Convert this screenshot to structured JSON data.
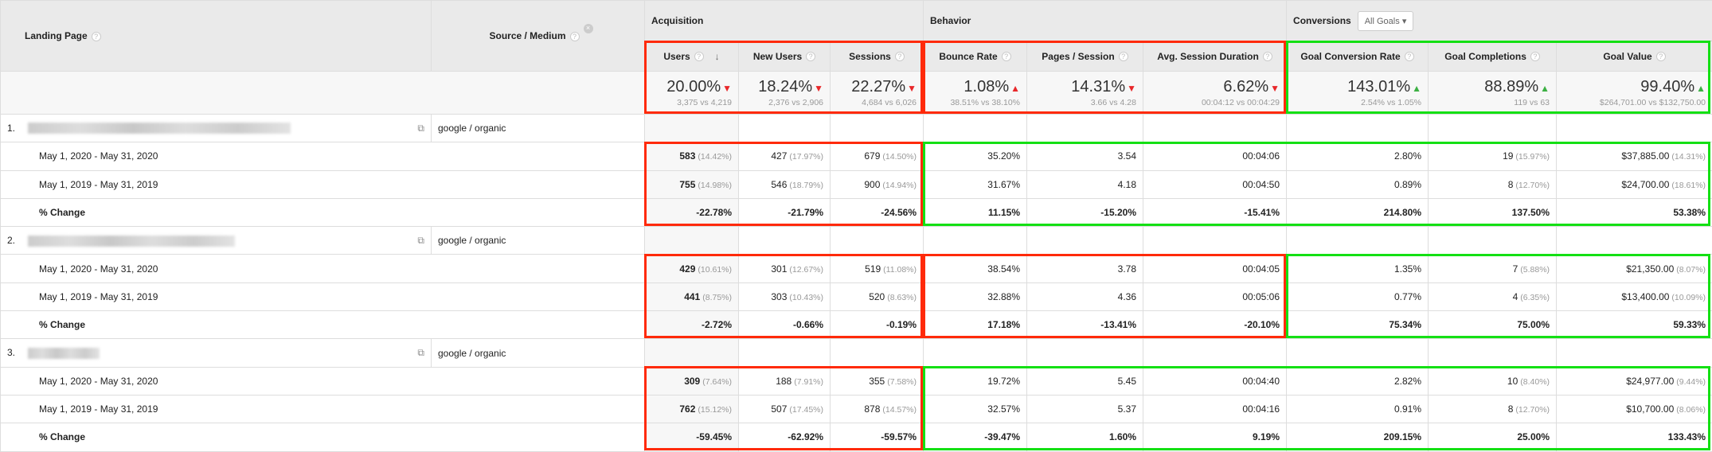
{
  "header": {
    "landing_page": "Landing Page",
    "source_medium": "Source / Medium",
    "groups": {
      "acquisition": "Acquisition",
      "behavior": "Behavior",
      "conversions": "Conversions",
      "goal_select": "All Goals"
    },
    "columns": [
      "Users",
      "New Users",
      "Sessions",
      "Bounce Rate",
      "Pages / Session",
      "Avg. Session Duration",
      "Goal Conversion Rate",
      "Goal Completions",
      "Goal Value"
    ]
  },
  "summary": [
    {
      "value": "20.00%",
      "sub": "3,375 vs 4,219",
      "dir": "down"
    },
    {
      "value": "18.24%",
      "sub": "2,376 vs 2,906",
      "dir": "down"
    },
    {
      "value": "22.27%",
      "sub": "4,684 vs 6,026",
      "dir": "down"
    },
    {
      "value": "1.08%",
      "sub": "38.51% vs 38.10%",
      "dir": "up-bad"
    },
    {
      "value": "14.31%",
      "sub": "3.66 vs 4.28",
      "dir": "down"
    },
    {
      "value": "6.62%",
      "sub": "00:04:12 vs 00:04:29",
      "dir": "down"
    },
    {
      "value": "143.01%",
      "sub": "2.54% vs 1.05%",
      "dir": "up"
    },
    {
      "value": "88.89%",
      "sub": "119 vs 63",
      "dir": "up"
    },
    {
      "value": "99.40%",
      "sub": "$264,701.00 vs $132,750.00",
      "dir": "up"
    }
  ],
  "rows": [
    {
      "index": "1.",
      "source": "google / organic",
      "periods": [
        {
          "label": "May 1, 2020 - May 31, 2020",
          "cells": [
            [
              "583",
              "(14.42%)"
            ],
            [
              "427",
              "(17.97%)"
            ],
            [
              "679",
              "(14.50%)"
            ],
            [
              "35.20%",
              ""
            ],
            [
              "3.54",
              ""
            ],
            [
              "00:04:06",
              ""
            ],
            [
              "2.80%",
              ""
            ],
            [
              "19",
              "(15.97%)"
            ],
            [
              "$37,885.00",
              "(14.31%)"
            ]
          ]
        },
        {
          "label": "May 1, 2019 - May 31, 2019",
          "cells": [
            [
              "755",
              "(14.98%)"
            ],
            [
              "546",
              "(18.79%)"
            ],
            [
              "900",
              "(14.94%)"
            ],
            [
              "31.67%",
              ""
            ],
            [
              "4.18",
              ""
            ],
            [
              "00:04:50",
              ""
            ],
            [
              "0.89%",
              ""
            ],
            [
              "8",
              "(12.70%)"
            ],
            [
              "$24,700.00",
              "(18.61%)"
            ]
          ]
        },
        {
          "label": "% Change",
          "cells": [
            [
              "-22.78%",
              ""
            ],
            [
              "-21.79%",
              ""
            ],
            [
              "-24.56%",
              ""
            ],
            [
              "11.15%",
              ""
            ],
            [
              "-15.20%",
              ""
            ],
            [
              "-15.41%",
              ""
            ],
            [
              "214.80%",
              ""
            ],
            [
              "137.50%",
              ""
            ],
            [
              "53.38%",
              ""
            ]
          ]
        }
      ]
    },
    {
      "index": "2.",
      "source": "google / organic",
      "periods": [
        {
          "label": "May 1, 2020 - May 31, 2020",
          "cells": [
            [
              "429",
              "(10.61%)"
            ],
            [
              "301",
              "(12.67%)"
            ],
            [
              "519",
              "(11.08%)"
            ],
            [
              "38.54%",
              ""
            ],
            [
              "3.78",
              ""
            ],
            [
              "00:04:05",
              ""
            ],
            [
              "1.35%",
              ""
            ],
            [
              "7",
              "(5.88%)"
            ],
            [
              "$21,350.00",
              "(8.07%)"
            ]
          ]
        },
        {
          "label": "May 1, 2019 - May 31, 2019",
          "cells": [
            [
              "441",
              "(8.75%)"
            ],
            [
              "303",
              "(10.43%)"
            ],
            [
              "520",
              "(8.63%)"
            ],
            [
              "32.88%",
              ""
            ],
            [
              "4.36",
              ""
            ],
            [
              "00:05:06",
              ""
            ],
            [
              "0.77%",
              ""
            ],
            [
              "4",
              "(6.35%)"
            ],
            [
              "$13,400.00",
              "(10.09%)"
            ]
          ]
        },
        {
          "label": "% Change",
          "cells": [
            [
              "-2.72%",
              ""
            ],
            [
              "-0.66%",
              ""
            ],
            [
              "-0.19%",
              ""
            ],
            [
              "17.18%",
              ""
            ],
            [
              "-13.41%",
              ""
            ],
            [
              "-20.10%",
              ""
            ],
            [
              "75.34%",
              ""
            ],
            [
              "75.00%",
              ""
            ],
            [
              "59.33%",
              ""
            ]
          ]
        }
      ]
    },
    {
      "index": "3.",
      "source": "google / organic",
      "periods": [
        {
          "label": "May 1, 2020 - May 31, 2020",
          "cells": [
            [
              "309",
              "(7.64%)"
            ],
            [
              "188",
              "(7.91%)"
            ],
            [
              "355",
              "(7.58%)"
            ],
            [
              "19.72%",
              ""
            ],
            [
              "5.45",
              ""
            ],
            [
              "00:04:40",
              ""
            ],
            [
              "2.82%",
              ""
            ],
            [
              "10",
              "(8.40%)"
            ],
            [
              "$24,977.00",
              "(9.44%)"
            ]
          ]
        },
        {
          "label": "May 1, 2019 - May 31, 2019",
          "cells": [
            [
              "762",
              "(15.12%)"
            ],
            [
              "507",
              "(17.45%)"
            ],
            [
              "878",
              "(14.57%)"
            ],
            [
              "32.57%",
              ""
            ],
            [
              "5.37",
              ""
            ],
            [
              "00:04:16",
              ""
            ],
            [
              "0.91%",
              ""
            ],
            [
              "8",
              "(12.70%)"
            ],
            [
              "$10,700.00",
              "(8.06%)"
            ]
          ]
        },
        {
          "label": "% Change",
          "cells": [
            [
              "-59.45%",
              ""
            ],
            [
              "-62.92%",
              ""
            ],
            [
              "-59.57%",
              ""
            ],
            [
              "-39.47%",
              ""
            ],
            [
              "1.60%",
              ""
            ],
            [
              "9.19%",
              ""
            ],
            [
              "209.15%",
              ""
            ],
            [
              "25.00%",
              ""
            ],
            [
              "133.43%",
              ""
            ]
          ]
        }
      ]
    }
  ],
  "colors": {
    "highlight_bad": "#ff2a0a",
    "highlight_good": "#14e014",
    "arrow_down": "#e8272a",
    "arrow_up": "#3cb043"
  }
}
